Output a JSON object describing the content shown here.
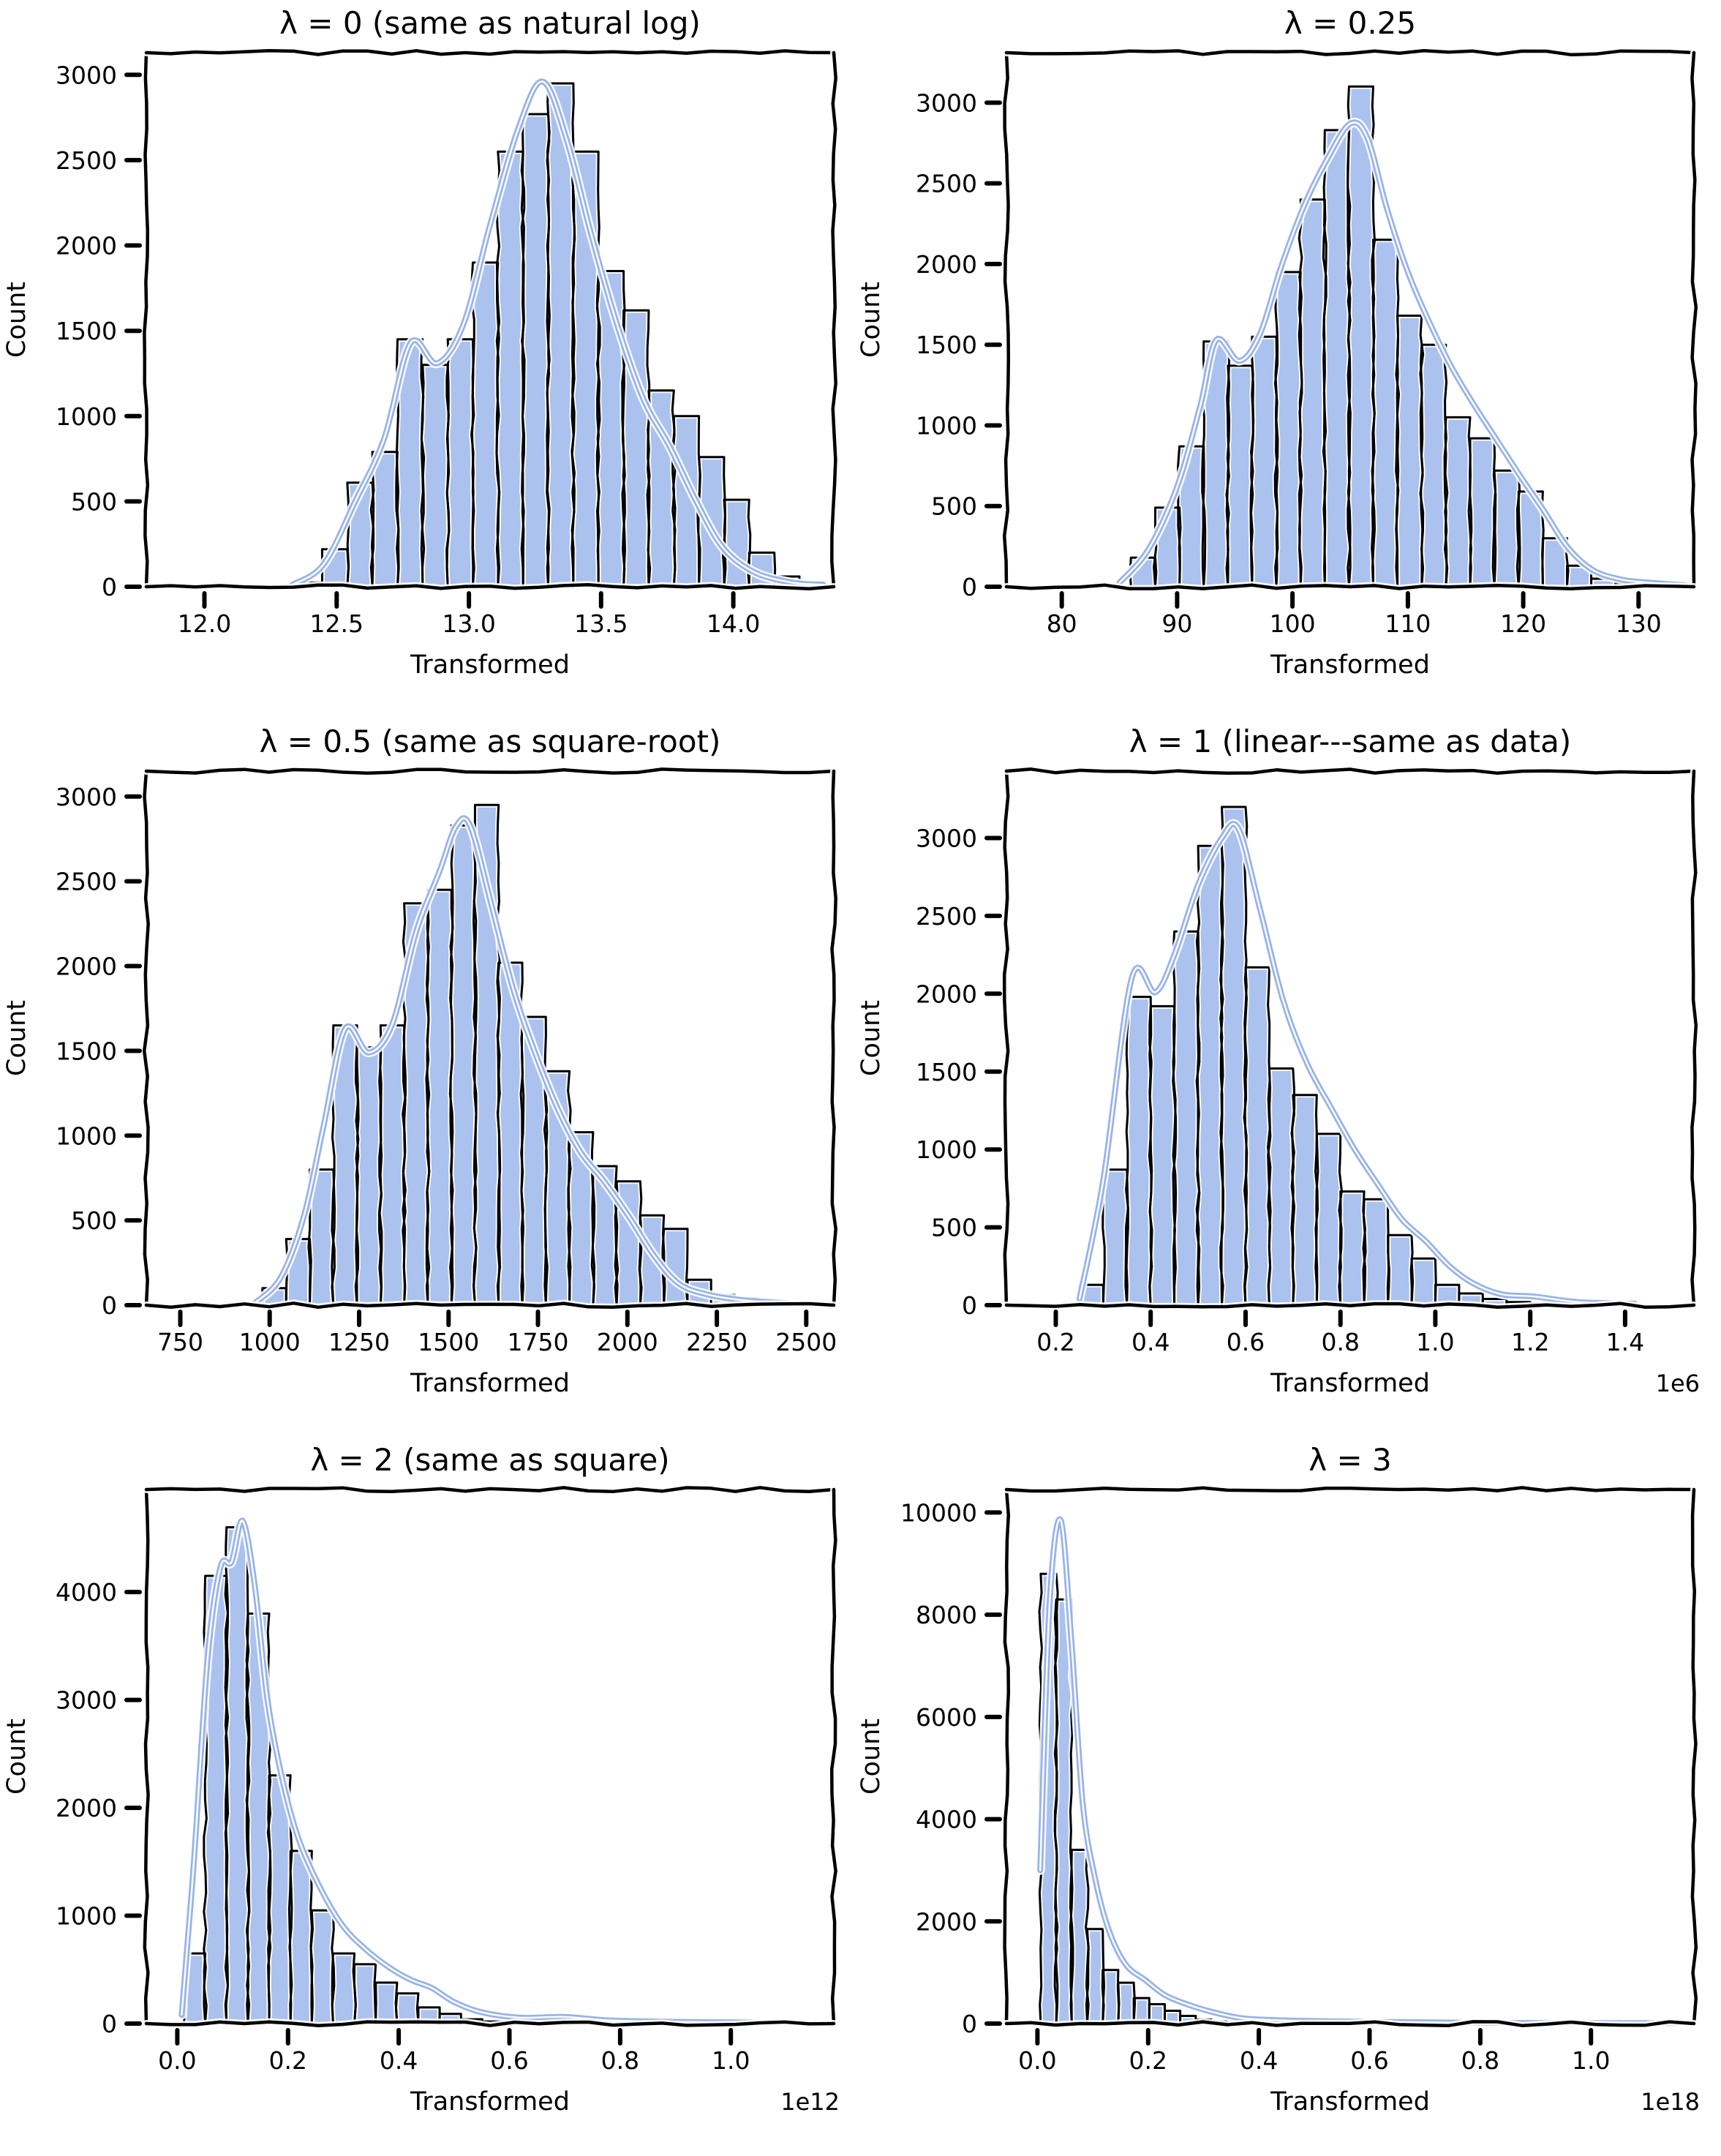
{
  "figure": {
    "background": "#ffffff",
    "rows": 3,
    "cols": 2
  },
  "style": {
    "bar_fill": "#abc1ee",
    "bar_edge": "#000000",
    "halo": "#ffffff",
    "kde_color": "#96b2eb",
    "kde_core": "#ffffff",
    "axis_color": "#000000",
    "text_color": "#000000"
  },
  "chart_data": [
    {
      "type": "bar",
      "subtype": "histogram+kde",
      "title": "λ = 0 (same as natural log)",
      "xlabel": "Transformed",
      "ylabel": "Count",
      "offset_label": "",
      "xlim": [
        11.78,
        14.38
      ],
      "ylim": [
        0,
        3130
      ],
      "xticks": {
        "values": [
          12.0,
          12.5,
          13.0,
          13.5,
          14.0
        ],
        "labels": [
          "12.0",
          "12.5",
          "13.0",
          "13.5",
          "14.0"
        ]
      },
      "yticks": {
        "values": [
          0,
          500,
          1000,
          1500,
          2000,
          2500,
          3000
        ],
        "labels": [
          "0",
          "500",
          "1000",
          "1500",
          "2000",
          "2500",
          "3000"
        ]
      },
      "bins": {
        "start": 12.35,
        "width": 0.095
      },
      "counts": [
        25,
        220,
        610,
        790,
        1450,
        1300,
        1450,
        1900,
        2550,
        2770,
        2950,
        2550,
        1850,
        1620,
        1150,
        1000,
        760,
        510,
        200,
        60,
        25
      ],
      "kde": [
        [
          12.33,
          10
        ],
        [
          12.45,
          130
        ],
        [
          12.57,
          500
        ],
        [
          12.68,
          870
        ],
        [
          12.78,
          1430
        ],
        [
          12.88,
          1310
        ],
        [
          12.98,
          1540
        ],
        [
          13.08,
          2120
        ],
        [
          13.19,
          2700
        ],
        [
          13.28,
          2960
        ],
        [
          13.37,
          2620
        ],
        [
          13.46,
          2080
        ],
        [
          13.56,
          1540
        ],
        [
          13.66,
          1100
        ],
        [
          13.76,
          820
        ],
        [
          13.86,
          500
        ],
        [
          13.96,
          230
        ],
        [
          14.08,
          85
        ],
        [
          14.22,
          25
        ],
        [
          14.34,
          12
        ]
      ]
    },
    {
      "type": "bar",
      "subtype": "histogram+kde",
      "title": "λ = 0.25",
      "xlabel": "Transformed",
      "ylabel": "Count",
      "offset_label": "",
      "xlim": [
        75.2,
        134.8
      ],
      "ylim": [
        0,
        3310
      ],
      "xticks": {
        "values": [
          80,
          90,
          100,
          110,
          120,
          130
        ],
        "labels": [
          "80",
          "90",
          "100",
          "110",
          "120",
          "130"
        ]
      },
      "yticks": {
        "values": [
          0,
          500,
          1000,
          1500,
          2000,
          2500,
          3000
        ],
        "labels": [
          "0",
          "500",
          "1000",
          "1500",
          "2000",
          "2500",
          "3000"
        ]
      },
      "bins": {
        "start": 86,
        "width": 2.1
      },
      "counts": [
        180,
        490,
        870,
        1520,
        1370,
        1550,
        1950,
        2400,
        2830,
        3100,
        2150,
        1680,
        1500,
        1050,
        920,
        720,
        590,
        300,
        130,
        50,
        20
      ],
      "kde": [
        [
          85,
          25
        ],
        [
          87.5,
          230
        ],
        [
          90,
          620
        ],
        [
          92,
          1120
        ],
        [
          93.4,
          1530
        ],
        [
          95.4,
          1400
        ],
        [
          97.2,
          1570
        ],
        [
          99,
          1980
        ],
        [
          101,
          2360
        ],
        [
          103,
          2650
        ],
        [
          105,
          2870
        ],
        [
          106.5,
          2780
        ],
        [
          108.2,
          2340
        ],
        [
          110,
          1950
        ],
        [
          111.8,
          1650
        ],
        [
          113.8,
          1360
        ],
        [
          115.8,
          1120
        ],
        [
          117.8,
          900
        ],
        [
          119.8,
          680
        ],
        [
          121.8,
          470
        ],
        [
          123.8,
          250
        ],
        [
          126,
          105
        ],
        [
          128.5,
          45
        ],
        [
          131,
          25
        ],
        [
          134,
          10
        ]
      ]
    },
    {
      "type": "bar",
      "subtype": "histogram+kde",
      "title": "λ = 0.5 (same as square-root)",
      "xlabel": "Transformed",
      "ylabel": "Count",
      "offset_label": "",
      "xlim": [
        655,
        2577
      ],
      "ylim": [
        0,
        3150
      ],
      "xticks": {
        "values": [
          750,
          1000,
          1250,
          1500,
          1750,
          2000,
          2250,
          2500
        ],
        "labels": [
          "750",
          "1000",
          "1250",
          "1500",
          "1750",
          "2000",
          "2250",
          "2500"
        ]
      },
      "yticks": {
        "values": [
          0,
          500,
          1000,
          1500,
          2000,
          2500,
          3000
        ],
        "labels": [
          "0",
          "500",
          "1000",
          "1500",
          "2000",
          "2500",
          "3000"
        ]
      },
      "bins": {
        "start": 980,
        "width": 66
      },
      "counts": [
        100,
        390,
        800,
        1650,
        1520,
        1650,
        2370,
        2450,
        2830,
        2950,
        2020,
        1700,
        1380,
        1020,
        820,
        730,
        530,
        450,
        150,
        60,
        40,
        20
      ],
      "kde": [
        [
          960,
          15
        ],
        [
          1030,
          160
        ],
        [
          1095,
          520
        ],
        [
          1150,
          1050
        ],
        [
          1211,
          1630
        ],
        [
          1277,
          1490
        ],
        [
          1343,
          1660
        ],
        [
          1409,
          2200
        ],
        [
          1475,
          2560
        ],
        [
          1520,
          2820
        ],
        [
          1560,
          2830
        ],
        [
          1620,
          2360
        ],
        [
          1680,
          1870
        ],
        [
          1740,
          1500
        ],
        [
          1805,
          1160
        ],
        [
          1870,
          900
        ],
        [
          1935,
          730
        ],
        [
          2005,
          520
        ],
        [
          2075,
          290
        ],
        [
          2145,
          125
        ],
        [
          2230,
          60
        ],
        [
          2330,
          28
        ],
        [
          2450,
          12
        ]
      ]
    },
    {
      "type": "bar",
      "subtype": "histogram+kde",
      "title": "λ = 1 (linear---same as data)",
      "xlabel": "Transformed",
      "ylabel": "Count",
      "offset_label": "1e6",
      "xlim": [
        0.096,
        1.545
      ],
      "ylim": [
        0,
        3430
      ],
      "xticks": {
        "values": [
          0.2,
          0.4,
          0.6,
          0.8,
          1.0,
          1.2,
          1.4
        ],
        "labels": [
          "0.2",
          "0.4",
          "0.6",
          "0.8",
          "1.0",
          "1.2",
          "1.4"
        ]
      },
      "yticks": {
        "values": [
          0,
          500,
          1000,
          1500,
          2000,
          2500,
          3000
        ],
        "labels": [
          "0",
          "500",
          "1000",
          "1500",
          "2000",
          "2500",
          "3000"
        ]
      },
      "bins": {
        "start": 0.25,
        "width": 0.05
      },
      "counts": [
        130,
        870,
        1980,
        1920,
        2400,
        2950,
        3200,
        2170,
        1520,
        1350,
        1100,
        730,
        680,
        450,
        300,
        130,
        75,
        40,
        20,
        10
      ],
      "kde": [
        [
          0.25,
          40
        ],
        [
          0.3,
          800
        ],
        [
          0.36,
          2100
        ],
        [
          0.41,
          2010
        ],
        [
          0.45,
          2250
        ],
        [
          0.5,
          2700
        ],
        [
          0.55,
          3000
        ],
        [
          0.585,
          3060
        ],
        [
          0.63,
          2550
        ],
        [
          0.68,
          1950
        ],
        [
          0.73,
          1550
        ],
        [
          0.78,
          1270
        ],
        [
          0.83,
          1000
        ],
        [
          0.88,
          770
        ],
        [
          0.93,
          550
        ],
        [
          0.98,
          410
        ],
        [
          1.03,
          250
        ],
        [
          1.08,
          140
        ],
        [
          1.14,
          70
        ],
        [
          1.21,
          55
        ],
        [
          1.3,
          20
        ],
        [
          1.42,
          10
        ]
      ]
    },
    {
      "type": "bar",
      "subtype": "histogram+kde",
      "title": "λ = 2 (same as square)",
      "xlabel": "Transformed",
      "ylabel": "Count",
      "offset_label": "1e12",
      "xlim": [
        -0.056,
        1.186
      ],
      "ylim": [
        0,
        4950
      ],
      "xticks": {
        "values": [
          0.0,
          0.2,
          0.4,
          0.6,
          0.8,
          1.0
        ],
        "labels": [
          "0.0",
          "0.2",
          "0.4",
          "0.6",
          "0.8",
          "1.0"
        ]
      },
      "yticks": {
        "values": [
          0,
          1000,
          2000,
          3000,
          4000
        ],
        "labels": [
          "0",
          "1000",
          "2000",
          "3000",
          "4000"
        ]
      },
      "bins": {
        "start": 0.012,
        "width": 0.0385
      },
      "counts": [
        650,
        4150,
        4600,
        3800,
        2300,
        1600,
        1050,
        650,
        550,
        380,
        280,
        150,
        90,
        40,
        20
      ],
      "kde": [
        [
          0.008,
          80
        ],
        [
          0.03,
          1500
        ],
        [
          0.055,
          3400
        ],
        [
          0.078,
          4230
        ],
        [
          0.098,
          4280
        ],
        [
          0.118,
          4660
        ],
        [
          0.14,
          4060
        ],
        [
          0.163,
          3000
        ],
        [
          0.19,
          2260
        ],
        [
          0.22,
          1700
        ],
        [
          0.26,
          1240
        ],
        [
          0.3,
          900
        ],
        [
          0.34,
          690
        ],
        [
          0.38,
          530
        ],
        [
          0.42,
          410
        ],
        [
          0.46,
          330
        ],
        [
          0.5,
          200
        ],
        [
          0.55,
          105
        ],
        [
          0.62,
          55
        ],
        [
          0.7,
          62
        ],
        [
          0.78,
          30
        ],
        [
          0.9,
          16
        ],
        [
          1.05,
          10
        ]
      ]
    },
    {
      "type": "bar",
      "subtype": "histogram+kde",
      "title": "λ = 3",
      "xlabel": "Transformed",
      "ylabel": "Count",
      "offset_label": "1e18",
      "xlim": [
        -0.056,
        1.186
      ],
      "ylim": [
        0,
        10450
      ],
      "xticks": {
        "values": [
          0.0,
          0.2,
          0.4,
          0.6,
          0.8,
          1.0
        ],
        "labels": [
          "0.0",
          "0.2",
          "0.4",
          "0.6",
          "0.8",
          "1.0"
        ]
      },
      "yticks": {
        "values": [
          0,
          2000,
          4000,
          6000,
          8000,
          10000
        ],
        "labels": [
          "0",
          "2000",
          "4000",
          "6000",
          "8000",
          "10000"
        ]
      },
      "bins": {
        "start": 0.006,
        "width": 0.028
      },
      "counts": [
        8800,
        8300,
        3400,
        1850,
        1050,
        800,
        500,
        380,
        250,
        150,
        80,
        40
      ],
      "kde": [
        [
          0.005,
          3000
        ],
        [
          0.022,
          8200
        ],
        [
          0.042,
          9850
        ],
        [
          0.062,
          7400
        ],
        [
          0.082,
          4300
        ],
        [
          0.105,
          2800
        ],
        [
          0.13,
          1800
        ],
        [
          0.16,
          1150
        ],
        [
          0.195,
          850
        ],
        [
          0.23,
          560
        ],
        [
          0.27,
          380
        ],
        [
          0.315,
          230
        ],
        [
          0.37,
          105
        ],
        [
          0.44,
          65
        ],
        [
          0.53,
          45
        ],
        [
          0.66,
          28
        ],
        [
          0.82,
          15
        ],
        [
          1.0,
          10
        ],
        [
          1.16,
          8
        ]
      ]
    }
  ]
}
